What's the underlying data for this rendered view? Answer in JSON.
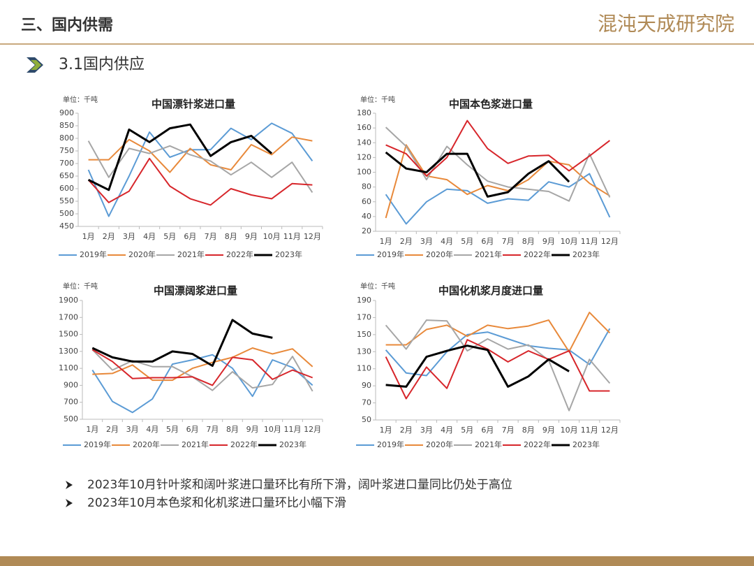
{
  "header": {
    "section": "三、国内供需",
    "logo": "混沌天成研究院",
    "subtitle": "3.1国内供应"
  },
  "chart_data": [
    {
      "type": "line",
      "title": "中国漂针浆进口量",
      "unit": "单位：千吨",
      "categories": [
        "1月",
        "2月",
        "3月",
        "4月",
        "5月",
        "6月",
        "7月",
        "8月",
        "9月",
        "10月",
        "11月",
        "12月"
      ],
      "ylim": [
        450,
        900
      ],
      "yticks": [
        450,
        500,
        550,
        600,
        650,
        700,
        750,
        800,
        850,
        900
      ],
      "series": [
        {
          "name": "2019年",
          "color": "#5b9bd5",
          "values": [
            675,
            490,
            650,
            825,
            725,
            755,
            755,
            840,
            795,
            860,
            820,
            710
          ]
        },
        {
          "name": "2020年",
          "color": "#e8893a",
          "values": [
            715,
            715,
            795,
            750,
            665,
            760,
            695,
            675,
            775,
            735,
            805,
            790
          ]
        },
        {
          "name": "2021年",
          "color": "#a6a6a6",
          "values": [
            790,
            645,
            760,
            740,
            770,
            735,
            710,
            655,
            705,
            645,
            705,
            585
          ]
        },
        {
          "name": "2022年",
          "color": "#d7262b",
          "values": [
            635,
            545,
            590,
            720,
            610,
            560,
            535,
            600,
            575,
            560,
            620,
            615
          ]
        },
        {
          "name": "2023年",
          "color": "#000000",
          "values": [
            635,
            595,
            835,
            785,
            840,
            855,
            730,
            785,
            810,
            740,
            null,
            null
          ]
        }
      ]
    },
    {
      "type": "line",
      "title": "中国本色浆进口量",
      "unit": "单位：千吨",
      "categories": [
        "1月",
        "2月",
        "3月",
        "4月",
        "5月",
        "6月",
        "7月",
        "8月",
        "9月",
        "10月",
        "11月",
        "12月"
      ],
      "ylim": [
        20,
        180
      ],
      "yticks": [
        20,
        40,
        60,
        80,
        100,
        120,
        140,
        160,
        180
      ],
      "series": [
        {
          "name": "2019年",
          "color": "#5b9bd5",
          "values": [
            70,
            30,
            60,
            77,
            75,
            58,
            64,
            62,
            87,
            80,
            98,
            39
          ]
        },
        {
          "name": "2020年",
          "color": "#e8893a",
          "values": [
            38,
            137,
            95,
            90,
            70,
            82,
            75,
            90,
            115,
            110,
            85,
            68
          ]
        },
        {
          "name": "2021年",
          "color": "#a6a6a6",
          "values": [
            161,
            135,
            90,
            135,
            110,
            88,
            80,
            77,
            74,
            61,
            125,
            66
          ]
        },
        {
          "name": "2022年",
          "color": "#d7262b",
          "values": [
            137,
            125,
            95,
            120,
            170,
            132,
            112,
            122,
            123,
            102,
            122,
            143
          ]
        },
        {
          "name": "2023年",
          "color": "#000000",
          "values": [
            127,
            105,
            100,
            125,
            125,
            67,
            73,
            98,
            115,
            87,
            null,
            null
          ]
        }
      ]
    },
    {
      "type": "line",
      "title": "中国漂阔浆进口量",
      "unit": "单位：千吨",
      "categories": [
        "1月",
        "2月",
        "3月",
        "4月",
        "5月",
        "6月",
        "7月",
        "8月",
        "9月",
        "10月",
        "11月",
        "12月"
      ],
      "ylim": [
        500,
        1900
      ],
      "yticks": [
        500,
        700,
        900,
        1100,
        1300,
        1500,
        1700,
        1900
      ],
      "series": [
        {
          "name": "2019年",
          "color": "#5b9bd5",
          "values": [
            1080,
            710,
            580,
            740,
            1150,
            1200,
            1260,
            1100,
            770,
            1200,
            1110,
            900
          ]
        },
        {
          "name": "2020年",
          "color": "#e8893a",
          "values": [
            1030,
            1040,
            1140,
            960,
            960,
            1100,
            1170,
            1230,
            1340,
            1270,
            1330,
            1120
          ]
        },
        {
          "name": "2021年",
          "color": "#a6a6a6",
          "values": [
            1320,
            1080,
            1190,
            1120,
            1120,
            1000,
            840,
            1060,
            870,
            910,
            1240,
            830
          ]
        },
        {
          "name": "2022年",
          "color": "#d7262b",
          "values": [
            1320,
            1180,
            980,
            990,
            990,
            1000,
            900,
            1230,
            1200,
            970,
            1080,
            990
          ]
        },
        {
          "name": "2023年",
          "color": "#000000",
          "values": [
            1340,
            1230,
            1180,
            1180,
            1300,
            1270,
            1130,
            1670,
            1510,
            1460,
            null,
            null
          ]
        }
      ]
    },
    {
      "type": "line",
      "title": "中国化机浆月度进口量",
      "unit": "单位：千吨",
      "categories": [
        "1月",
        "2月",
        "3月",
        "4月",
        "5月",
        "6月",
        "7月",
        "8月",
        "9月",
        "10月",
        "11月",
        "12月"
      ],
      "ylim": [
        50,
        190
      ],
      "yticks": [
        50,
        70,
        90,
        110,
        130,
        150,
        170,
        190
      ],
      "series": [
        {
          "name": "2019年",
          "color": "#5b9bd5",
          "values": [
            132,
            105,
            102,
            130,
            150,
            153,
            145,
            137,
            134,
            132,
            115,
            157
          ]
        },
        {
          "name": "2020年",
          "color": "#e8893a",
          "values": [
            138,
            138,
            156,
            161,
            148,
            161,
            157,
            160,
            167,
            130,
            176,
            152
          ]
        },
        {
          "name": "2021年",
          "color": "#a6a6a6",
          "values": [
            161,
            133,
            167,
            166,
            131,
            145,
            133,
            138,
            120,
            61,
            121,
            93
          ]
        },
        {
          "name": "2022年",
          "color": "#d7262b",
          "values": [
            124,
            75,
            112,
            87,
            144,
            133,
            118,
            131,
            121,
            131,
            84,
            84
          ]
        },
        {
          "name": "2023年",
          "color": "#000000",
          "values": [
            91,
            89,
            124,
            131,
            137,
            132,
            89,
            101,
            121,
            107,
            null,
            null
          ]
        }
      ]
    }
  ],
  "bullets": [
    "2023年10月针叶浆和阔叶浆进口量环比有所下滑，阔叶浆进口量同比仍处于高位",
    "2023年10月本色浆和化机浆进口量环比小幅下滑"
  ]
}
